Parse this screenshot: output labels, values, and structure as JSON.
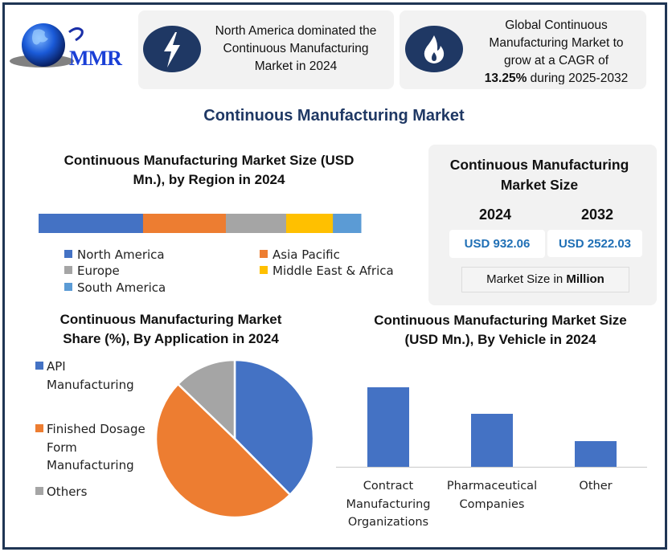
{
  "logo": {
    "text": "MMR"
  },
  "header": {
    "card1": {
      "icon": "lightning-bolt-icon",
      "text": [
        "North America dominated the",
        "Continuous Manufacturing",
        "Market in 2024"
      ]
    },
    "card2": {
      "icon": "flame-icon",
      "text": [
        "Global Continuous",
        "Manufacturing Market to",
        "grow at a CAGR of"
      ],
      "cagr": "13.25%",
      "period": " during 2025-2032"
    }
  },
  "main_title": "Continuous Manufacturing Market",
  "market_size": {
    "title": [
      "Continuous Manufacturing",
      "Market Size"
    ],
    "year1": "2024",
    "year2": "2032",
    "value1": "USD 932.06",
    "value2": "USD 2522.03",
    "unit_prefix": "Market Size in ",
    "unit_bold": "Million"
  },
  "colors": {
    "blue": "#4472c4",
    "orange": "#ed7d31",
    "gray": "#a5a5a5",
    "yellow": "#ffc000",
    "lightblue": "#5b9bd5",
    "navy": "#1f3864"
  },
  "chart_data": [
    {
      "type": "bar",
      "stacked": true,
      "orientation": "horizontal",
      "title": [
        "Continuous Manufacturing Market Size (USD",
        "Mn.), by Region in 2024"
      ],
      "unit": "percent share (estimated)",
      "series": [
        {
          "name": "North America",
          "value": 32.4,
          "color": "#4472c4"
        },
        {
          "name": "Asia Pacific",
          "value": 25.7,
          "color": "#ed7d31"
        },
        {
          "name": "Europe",
          "value": 18.7,
          "color": "#a5a5a5"
        },
        {
          "name": "Middle East & Africa",
          "value": 14.5,
          "color": "#ffc000"
        },
        {
          "name": "South America",
          "value": 8.7,
          "color": "#5b9bd5"
        }
      ],
      "legend": "bottom"
    },
    {
      "type": "pie",
      "title": [
        "Continuous Manufacturing Market",
        "Share (%), By Application in 2024"
      ],
      "slices": [
        {
          "name": "API Manufacturing",
          "label_lines": [
            "API",
            "Manufacturing"
          ],
          "value": 37.6,
          "color": "#4472c4"
        },
        {
          "name": "Finished Dosage Form Manufacturing",
          "label_lines": [
            "Finished Dosage",
            "Form",
            "Manufacturing"
          ],
          "value": 49.6,
          "color": "#ed7d31"
        },
        {
          "name": "Others",
          "label_lines": [
            "Others"
          ],
          "value": 12.8,
          "color": "#a5a5a5"
        }
      ],
      "legend": "left"
    },
    {
      "type": "bar",
      "title": [
        "Continuous Manufacturing Market Size",
        "(USD Mn.), By Vehicle in 2024"
      ],
      "categories": [
        {
          "name": "Contract Manufacturing Organizations",
          "label_lines": [
            "Contract",
            "Manufacturing",
            "Organizations"
          ]
        },
        {
          "name": "Pharmaceutical Companies",
          "label_lines": [
            "Pharmaceutical",
            "Companies"
          ]
        },
        {
          "name": "Other",
          "label_lines": [
            "Other"
          ]
        }
      ],
      "values": [
        99,
        66,
        32
      ],
      "value_note": "relative heights (no axis shown)",
      "ylim": [
        0,
        100
      ],
      "color": "#4472c4",
      "grid": false
    }
  ]
}
